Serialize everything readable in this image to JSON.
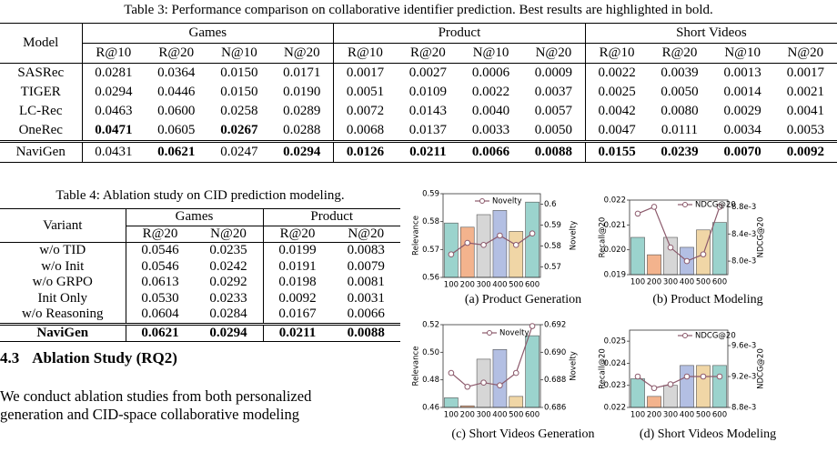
{
  "table3": {
    "caption": "Table 3: Performance comparison on collaborative identifier prediction. Best results are highlighted in bold.",
    "model_header": "Model",
    "groups": [
      "Games",
      "Product",
      "Short Videos"
    ],
    "metrics": [
      "R@10",
      "R@20",
      "N@10",
      "N@20",
      "R@10",
      "R@20",
      "N@10",
      "N@20",
      "R@10",
      "R@20",
      "N@10",
      "N@20"
    ],
    "rows": [
      {
        "cells": [
          "SASRec",
          "0.0281",
          "0.0364",
          "0.0150",
          "0.0171",
          "0.0017",
          "0.0027",
          "0.0006",
          "0.0009",
          "0.0022",
          "0.0039",
          "0.0013",
          "0.0017"
        ],
        "bold": []
      },
      {
        "cells": [
          "TIGER",
          "0.0294",
          "0.0446",
          "0.0150",
          "0.0190",
          "0.0051",
          "0.0109",
          "0.0022",
          "0.0037",
          "0.0025",
          "0.0050",
          "0.0014",
          "0.0021"
        ],
        "bold": []
      },
      {
        "cells": [
          "LC-Rec",
          "0.0463",
          "0.0600",
          "0.0258",
          "0.0289",
          "0.0072",
          "0.0143",
          "0.0040",
          "0.0057",
          "0.0042",
          "0.0080",
          "0.0029",
          "0.0041"
        ],
        "bold": []
      },
      {
        "cells": [
          "OneRec",
          "0.0471",
          "0.0605",
          "0.0267",
          "0.0288",
          "0.0068",
          "0.0137",
          "0.0033",
          "0.0050",
          "0.0047",
          "0.0111",
          "0.0034",
          "0.0053"
        ],
        "bold": [
          1,
          3
        ]
      },
      {
        "cells": [
          "NaviGen",
          "0.0431",
          "0.0621",
          "0.0247",
          "0.0294",
          "0.0126",
          "0.0211",
          "0.0066",
          "0.0088",
          "0.0155",
          "0.0239",
          "0.0070",
          "0.0092"
        ],
        "bold": [
          2,
          4,
          5,
          6,
          7,
          8,
          9,
          10,
          11,
          12
        ]
      }
    ]
  },
  "table4": {
    "caption": "Table 4: Ablation study on CID prediction modeling.",
    "model_header": "Variant",
    "groups": [
      "Games",
      "Product"
    ],
    "metrics": [
      "R@20",
      "N@20",
      "R@20",
      "N@20"
    ],
    "rows": [
      {
        "cells": [
          "w/o TID",
          "0.0546",
          "0.0235",
          "0.0199",
          "0.0083"
        ],
        "bold": []
      },
      {
        "cells": [
          "w/o Init",
          "0.0546",
          "0.0242",
          "0.0191",
          "0.0079"
        ],
        "bold": []
      },
      {
        "cells": [
          "w/o GRPO",
          "0.0613",
          "0.0292",
          "0.0198",
          "0.0081"
        ],
        "bold": []
      },
      {
        "cells": [
          "Init Only",
          "0.0530",
          "0.0233",
          "0.0092",
          "0.0031"
        ],
        "bold": []
      },
      {
        "cells": [
          "w/o Reasoning",
          "0.0604",
          "0.0284",
          "0.0167",
          "0.0066"
        ],
        "bold": []
      },
      {
        "cells": [
          "NaviGen",
          "0.0621",
          "0.0294",
          "0.0211",
          "0.0088"
        ],
        "bold": [
          0,
          1,
          2,
          3,
          4
        ]
      }
    ]
  },
  "section": {
    "number": "4.3",
    "title": "Ablation Study (RQ2)"
  },
  "paragraph": [
    "We conduct ablation studies from both personalized",
    "generation and CID-space collaborative modeling"
  ],
  "chart_data": [
    {
      "type": "bar_line",
      "caption": "(a) Product Generation",
      "ylabel": "Relevance",
      "y2label": "Novelty",
      "categories": [
        "100",
        "200",
        "300",
        "400",
        "500",
        "600"
      ],
      "ylim": [
        0.56,
        0.59
      ],
      "yticks": [
        0.56,
        0.57,
        0.58,
        0.59
      ],
      "y2lim": [
        0.565,
        0.605
      ],
      "y2ticks": [
        0.57,
        0.58,
        0.59,
        0.6
      ],
      "series": [
        {
          "values": [
            0.5795,
            0.578,
            0.5825,
            0.584,
            0.5765,
            0.587
          ],
          "colors": [
            "#9bd3cd",
            "#f3b38d",
            "#d6d6d6",
            "#b3bfe3",
            "#f0d6a6",
            "#9bd3cd"
          ]
        },
        {
          "name": "Novelty",
          "color": "#8c5a6c",
          "values": [
            0.576,
            0.5815,
            0.5805,
            0.585,
            0.5805,
            0.586
          ],
          "axis": "y2"
        }
      ]
    },
    {
      "type": "bar_line",
      "caption": "(b) Product Modeling",
      "ylabel": "Recall@20",
      "y2label": "NDCG@20",
      "categories": [
        "100",
        "200",
        "300",
        "400",
        "500",
        "600"
      ],
      "ylim": [
        0.019,
        0.022
      ],
      "yticks": [
        {
          "value": 0.019,
          "label": "0.019"
        },
        {
          "value": 0.02,
          "label": "0.020"
        },
        {
          "value": 0.021,
          "label": "0.021"
        },
        {
          "value": 0.022,
          "label": "0.022"
        }
      ],
      "y2lim": [
        0.0078,
        0.0089
      ],
      "y2ticks": [
        {
          "value": 0.008,
          "label": "8.0e-3"
        },
        {
          "value": 0.0084,
          "label": "8.4e-3"
        },
        {
          "value": 0.0088,
          "label": "8.8e-3"
        }
      ],
      "series": [
        {
          "values": [
            0.0205,
            0.0198,
            0.0205,
            0.0201,
            0.0208,
            0.0211
          ],
          "colors": [
            "#9bd3cd",
            "#f3b38d",
            "#d6d6d6",
            "#b3bfe3",
            "#f0d6a6",
            "#9bd3cd"
          ]
        },
        {
          "name": "NDCG@20",
          "color": "#8c5a6c",
          "values": [
            0.0087,
            0.0088,
            0.0082,
            0.008,
            0.0081,
            0.0088
          ],
          "axis": "y2"
        }
      ]
    },
    {
      "type": "bar_line",
      "caption": "(c) Short Videos Generation",
      "ylabel": "Relevance",
      "y2label": "Novelty",
      "categories": [
        "100",
        "200",
        "300",
        "400",
        "500",
        "600"
      ],
      "ylim": [
        0.46,
        0.52
      ],
      "yticks": [
        {
          "value": 0.46,
          "label": "0.46"
        },
        {
          "value": 0.48,
          "label": "0.48"
        },
        {
          "value": 0.5,
          "label": "0.50"
        },
        {
          "value": 0.52,
          "label": "0.52"
        }
      ],
      "y2lim": [
        0.686,
        0.692
      ],
      "y2ticks": [
        0.686,
        0.688,
        {
          "value": 0.69,
          "label": "0.690"
        },
        0.692
      ],
      "series": [
        {
          "values": [
            0.467,
            0.4612,
            0.495,
            0.502,
            0.468,
            0.512
          ],
          "colors": [
            "#9bd3cd",
            "#f3b38d",
            "#d6d6d6",
            "#b3bfe3",
            "#f0d6a6",
            "#9bd3cd"
          ]
        },
        {
          "name": "Novelty",
          "color": "#8c5a6c",
          "values": [
            0.6885,
            0.6875,
            0.6878,
            0.6876,
            0.6885,
            0.6919
          ],
          "axis": "y2"
        }
      ]
    },
    {
      "type": "bar_line",
      "caption": "(d) Short Videos Modeling",
      "ylabel": "Recall@20",
      "y2label": "NDCG@20",
      "categories": [
        "100",
        "200",
        "300",
        "400",
        "500",
        "600"
      ],
      "ylim": [
        0.022,
        0.0255
      ],
      "yticks": [
        0.022,
        0.023,
        0.024,
        0.025
      ],
      "y2lim": [
        0.0088,
        0.0098
      ],
      "y2ticks": [
        {
          "value": 0.0088,
          "label": "8.8e-3"
        },
        {
          "value": 0.0092,
          "label": "9.2e-3"
        },
        {
          "value": 0.0096,
          "label": "9.6e-3"
        }
      ],
      "series": [
        {
          "values": [
            0.0233,
            0.0225,
            0.023,
            0.0239,
            0.0239,
            0.0239
          ],
          "colors": [
            "#9bd3cd",
            "#f3b38d",
            "#d6d6d6",
            "#b3bfe3",
            "#f0d6a6",
            "#9bd3cd"
          ]
        },
        {
          "name": "NDCG@20",
          "color": "#8c5a6c",
          "values": [
            0.0092,
            0.00905,
            0.0091,
            0.0092,
            0.0092,
            0.0092
          ],
          "axis": "y2"
        }
      ]
    }
  ]
}
